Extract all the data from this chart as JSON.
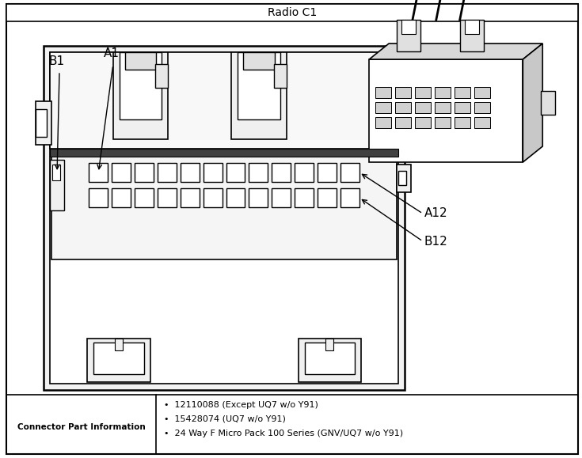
{
  "title": "Radio C1",
  "bg_color": "#ffffff",
  "connector_label_b1": "B1",
  "connector_label_a1": "A1",
  "connector_label_a12": "A12",
  "connector_label_b12": "B12",
  "connector_part_label": "Connector Part Information",
  "bullet_items": [
    "12110088 (Except UQ7 w/o Y91)",
    "15428074 (UQ7 w/o Y91)",
    "24 Way F Micro Pack 100 Series (GNV/UQ7 w/o Y91)"
  ],
  "num_pins_row": 12,
  "num_rows": 2,
  "lc": "#000000",
  "fc_main": "#f0f0f0",
  "fc_white": "#ffffff",
  "fc_dark": "#c8c8c8",
  "fc_mid": "#e0e0e0"
}
